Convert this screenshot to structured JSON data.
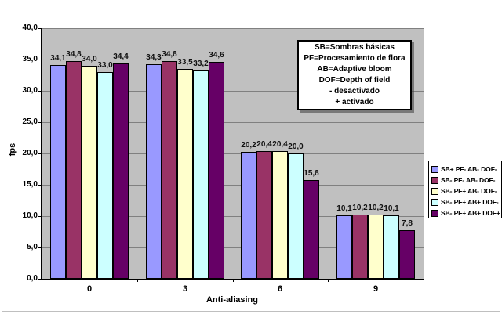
{
  "chart_data": {
    "type": "bar",
    "title": "",
    "xlabel": "Anti-aliasing",
    "ylabel": "fps",
    "ylim": [
      0,
      40
    ],
    "ytick_step": 5,
    "ytick_labels": [
      "0,0",
      "5,0",
      "10,0",
      "15,0",
      "20,0",
      "25,0",
      "30,0",
      "35,0",
      "40,0"
    ],
    "categories": [
      "0",
      "3",
      "6",
      "9"
    ],
    "series": [
      {
        "name": "SB+ PF- AB- DOF-",
        "color": "#9999FF",
        "values": [
          34.1,
          34.3,
          20.2,
          10.1
        ],
        "labels": [
          "34,1",
          "34,3",
          "20,2",
          "10,1"
        ]
      },
      {
        "name": "SB- PF- AB- DOF-",
        "color": "#993366",
        "values": [
          34.8,
          34.8,
          20.4,
          10.2
        ],
        "labels": [
          "34,8",
          "34,8",
          "20,4",
          "10,2"
        ]
      },
      {
        "name": "SB- PF+ AB- DOF-",
        "color": "#FFFFCC",
        "values": [
          34.0,
          33.5,
          20.4,
          10.2
        ],
        "labels": [
          "34,0",
          "33,5",
          "20,4",
          "10,2"
        ]
      },
      {
        "name": "SB- PF+ AB+ DOF-",
        "color": "#CCFFFF",
        "values": [
          33.0,
          33.2,
          20.0,
          10.1
        ],
        "labels": [
          "33,0",
          "33,2",
          "20,0",
          "10,1"
        ]
      },
      {
        "name": "SB- PF+ AB+ DOF+",
        "color": "#660066",
        "values": [
          34.4,
          34.6,
          15.8,
          7.8
        ],
        "labels": [
          "34,4",
          "34,6",
          "15,8",
          "7,8"
        ]
      }
    ],
    "grid": true,
    "legend_position": "right",
    "plot_bg": "#C0C0C0",
    "gridline_color": "#808080"
  },
  "annotation": {
    "lines": [
      "SB=Sombras básicas",
      "PF=Procesamiento de flora",
      "AB=Adaptive bloom",
      "DOF=Depth of field",
      "- desactivado",
      "+ activado"
    ]
  }
}
